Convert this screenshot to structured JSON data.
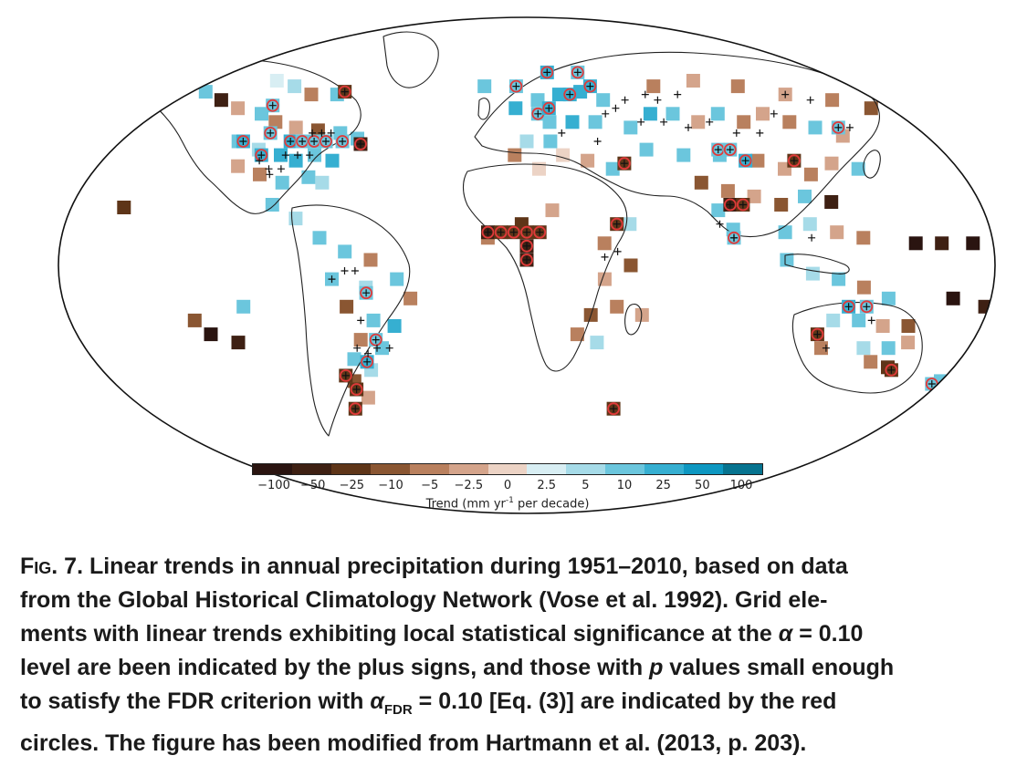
{
  "colorbar": {
    "ticks": [
      "−100",
      "−50",
      "−25",
      "−10",
      "−5",
      "−2.5",
      "0",
      "2.5",
      "5",
      "10",
      "25",
      "50",
      "100"
    ],
    "label_pre": "Trend (mm yr",
    "label_sup": "-1",
    "label_post": " per decade)",
    "colors": [
      "#2a1410",
      "#3e2013",
      "#5e3518",
      "#8a5632",
      "#b9805e",
      "#d4a48b",
      "#ecd3c5",
      "#d8eef3",
      "#a6dbe8",
      "#6bc6dd",
      "#36afd1",
      "#0d97c1",
      "#06738f"
    ]
  },
  "markers": {
    "significant": "#111111",
    "fdr_circle": "#e03a3a"
  },
  "map": {
    "cells": [
      {
        "lon": -120,
        "lat": 67,
        "c": 7
      },
      {
        "lon": -110,
        "lat": 65,
        "c": 8
      },
      {
        "lon": -100,
        "lat": 62,
        "c": 4
      },
      {
        "lon": -88,
        "lat": 62,
        "c": 9
      },
      {
        "lon": -150,
        "lat": 63,
        "c": 9
      },
      {
        "lon": -140,
        "lat": 60,
        "c": 1
      },
      {
        "lon": -130,
        "lat": 57,
        "c": 5
      },
      {
        "lon": -118,
        "lat": 55,
        "c": 9
      },
      {
        "lon": -110,
        "lat": 52,
        "c": 4
      },
      {
        "lon": -100,
        "lat": 50,
        "c": 5
      },
      {
        "lon": -90,
        "lat": 49,
        "c": 3
      },
      {
        "lon": -80,
        "lat": 48,
        "c": 9
      },
      {
        "lon": -72,
        "lat": 46,
        "c": 9
      },
      {
        "lon": -122,
        "lat": 45,
        "c": 9
      },
      {
        "lon": -112,
        "lat": 42,
        "c": 8
      },
      {
        "lon": -102,
        "lat": 40,
        "c": 10
      },
      {
        "lon": -95,
        "lat": 38,
        "c": 10
      },
      {
        "lon": -88,
        "lat": 40,
        "c": 9
      },
      {
        "lon": -80,
        "lat": 38,
        "c": 10
      },
      {
        "lon": -118,
        "lat": 36,
        "c": 5
      },
      {
        "lon": -108,
        "lat": 33,
        "c": 4
      },
      {
        "lon": -98,
        "lat": 30,
        "c": 9
      },
      {
        "lon": -88,
        "lat": 32,
        "c": 9
      },
      {
        "lon": -82,
        "lat": 30,
        "c": 8
      },
      {
        "lon": -158,
        "lat": 21,
        "c": 2
      },
      {
        "lon": -100,
        "lat": 22,
        "c": 9
      },
      {
        "lon": -90,
        "lat": 17,
        "c": 8
      },
      {
        "lon": -80,
        "lat": 10,
        "c": 9
      },
      {
        "lon": -70,
        "lat": 5,
        "c": 9
      },
      {
        "lon": -60,
        "lat": 2,
        "c": 4
      },
      {
        "lon": -75,
        "lat": -5,
        "c": 9
      },
      {
        "lon": -62,
        "lat": -8,
        "c": 8
      },
      {
        "lon": -50,
        "lat": -5,
        "c": 9
      },
      {
        "lon": -45,
        "lat": -12,
        "c": 4
      },
      {
        "lon": -70,
        "lat": -15,
        "c": 3
      },
      {
        "lon": -60,
        "lat": -20,
        "c": 9
      },
      {
        "lon": -52,
        "lat": -22,
        "c": 10
      },
      {
        "lon": -66,
        "lat": -27,
        "c": 4
      },
      {
        "lon": -58,
        "lat": -30,
        "c": 9
      },
      {
        "lon": -70,
        "lat": -34,
        "c": 9
      },
      {
        "lon": -64,
        "lat": -38,
        "c": 8
      },
      {
        "lon": -72,
        "lat": -42,
        "c": 3
      },
      {
        "lon": -68,
        "lat": -48,
        "c": 5
      },
      {
        "lon": -110,
        "lat": -15,
        "c": 9
      },
      {
        "lon": -130,
        "lat": -20,
        "c": 3
      },
      {
        "lon": -125,
        "lat": -25,
        "c": 0
      },
      {
        "lon": -115,
        "lat": -28,
        "c": 1
      },
      {
        "lon": -20,
        "lat": 65,
        "c": 9
      },
      {
        "lon": -5,
        "lat": 57,
        "c": 10
      },
      {
        "lon": 5,
        "lat": 60,
        "c": 9
      },
      {
        "lon": 15,
        "lat": 62,
        "c": 10
      },
      {
        "lon": 25,
        "lat": 63,
        "c": 10
      },
      {
        "lon": 35,
        "lat": 60,
        "c": 9
      },
      {
        "lon": 10,
        "lat": 52,
        "c": 9
      },
      {
        "lon": 20,
        "lat": 52,
        "c": 10
      },
      {
        "lon": 30,
        "lat": 52,
        "c": 9
      },
      {
        "lon": 0,
        "lat": 45,
        "c": 8
      },
      {
        "lon": 10,
        "lat": 45,
        "c": 9
      },
      {
        "lon": -5,
        "lat": 40,
        "c": 4
      },
      {
        "lon": 15,
        "lat": 40,
        "c": 6
      },
      {
        "lon": 25,
        "lat": 38,
        "c": 5
      },
      {
        "lon": 35,
        "lat": 35,
        "c": 9
      },
      {
        "lon": 5,
        "lat": 35,
        "c": 6
      },
      {
        "lon": 45,
        "lat": 50,
        "c": 9
      },
      {
        "lon": 55,
        "lat": 55,
        "c": 10
      },
      {
        "lon": 65,
        "lat": 55,
        "c": 9
      },
      {
        "lon": 75,
        "lat": 52,
        "c": 5
      },
      {
        "lon": 85,
        "lat": 55,
        "c": 9
      },
      {
        "lon": 95,
        "lat": 52,
        "c": 4
      },
      {
        "lon": 105,
        "lat": 55,
        "c": 5
      },
      {
        "lon": 115,
        "lat": 52,
        "c": 4
      },
      {
        "lon": 125,
        "lat": 50,
        "c": 9
      },
      {
        "lon": 135,
        "lat": 47,
        "c": 5
      },
      {
        "lon": 60,
        "lat": 65,
        "c": 4
      },
      {
        "lon": 80,
        "lat": 67,
        "c": 5
      },
      {
        "lon": 100,
        "lat": 65,
        "c": 4
      },
      {
        "lon": 120,
        "lat": 62,
        "c": 5
      },
      {
        "lon": 140,
        "lat": 60,
        "c": 4
      },
      {
        "lon": 155,
        "lat": 57,
        "c": 3
      },
      {
        "lon": 50,
        "lat": 42,
        "c": 9
      },
      {
        "lon": 65,
        "lat": 40,
        "c": 9
      },
      {
        "lon": 80,
        "lat": 40,
        "c": 9
      },
      {
        "lon": 95,
        "lat": 38,
        "c": 4
      },
      {
        "lon": 105,
        "lat": 35,
        "c": 5
      },
      {
        "lon": 115,
        "lat": 33,
        "c": 4
      },
      {
        "lon": 125,
        "lat": 37,
        "c": 5
      },
      {
        "lon": 135,
        "lat": 35,
        "c": 9
      },
      {
        "lon": 70,
        "lat": 30,
        "c": 3
      },
      {
        "lon": 80,
        "lat": 27,
        "c": 4
      },
      {
        "lon": 90,
        "lat": 25,
        "c": 5
      },
      {
        "lon": 100,
        "lat": 22,
        "c": 3
      },
      {
        "lon": 110,
        "lat": 25,
        "c": 9
      },
      {
        "lon": 120,
        "lat": 23,
        "c": 1
      },
      {
        "lon": 75,
        "lat": 20,
        "c": 9
      },
      {
        "lon": 80,
        "lat": 13,
        "c": 9
      },
      {
        "lon": 100,
        "lat": 12,
        "c": 9
      },
      {
        "lon": 110,
        "lat": 15,
        "c": 8
      },
      {
        "lon": 120,
        "lat": 12,
        "c": 5
      },
      {
        "lon": 130,
        "lat": 10,
        "c": 4
      },
      {
        "lon": 150,
        "lat": 8,
        "c": 0
      },
      {
        "lon": 160,
        "lat": 8,
        "c": 1
      },
      {
        "lon": 172,
        "lat": 8,
        "c": 0
      },
      {
        "lon": 100,
        "lat": 2,
        "c": 9
      },
      {
        "lon": 110,
        "lat": -3,
        "c": 8
      },
      {
        "lon": 120,
        "lat": -5,
        "c": 9
      },
      {
        "lon": 130,
        "lat": -8,
        "c": 4
      },
      {
        "lon": 140,
        "lat": -12,
        "c": 9
      },
      {
        "lon": 120,
        "lat": -20,
        "c": 8
      },
      {
        "lon": 130,
        "lat": -20,
        "c": 9
      },
      {
        "lon": 140,
        "lat": -22,
        "c": 5
      },
      {
        "lon": 150,
        "lat": -22,
        "c": 3
      },
      {
        "lon": 118,
        "lat": -30,
        "c": 4
      },
      {
        "lon": 135,
        "lat": -30,
        "c": 8
      },
      {
        "lon": 145,
        "lat": -30,
        "c": 9
      },
      {
        "lon": 152,
        "lat": -28,
        "c": 5
      },
      {
        "lon": 140,
        "lat": -35,
        "c": 4
      },
      {
        "lon": 148,
        "lat": -37,
        "c": 2
      },
      {
        "lon": 165,
        "lat": -12,
        "c": 0
      },
      {
        "lon": 178,
        "lat": -15,
        "c": 1
      },
      {
        "lon": 173,
        "lat": -42,
        "c": 9
      },
      {
        "lon": -2,
        "lat": 15,
        "c": 2
      },
      {
        "lon": 10,
        "lat": 20,
        "c": 5
      },
      {
        "lon": 40,
        "lat": 15,
        "c": 8
      },
      {
        "lon": 30,
        "lat": 8,
        "c": 4
      },
      {
        "lon": 40,
        "lat": 0,
        "c": 3
      },
      {
        "lon": 30,
        "lat": -5,
        "c": 5
      },
      {
        "lon": 35,
        "lat": -15,
        "c": 4
      },
      {
        "lon": 25,
        "lat": -18,
        "c": 3
      },
      {
        "lon": 45,
        "lat": -18,
        "c": 5
      },
      {
        "lon": 20,
        "lat": -25,
        "c": 4
      },
      {
        "lon": 28,
        "lat": -28,
        "c": 8
      },
      {
        "lon": -15,
        "lat": 10,
        "c": 4
      }
    ],
    "significant": [
      {
        "lon": -100,
        "lat": 40
      },
      {
        "lon": -95,
        "lat": 40
      },
      {
        "lon": -90,
        "lat": 40
      },
      {
        "lon": -110,
        "lat": 38
      },
      {
        "lon": -105,
        "lat": 35
      },
      {
        "lon": -100,
        "lat": 35
      },
      {
        "lon": -92,
        "lat": 48
      },
      {
        "lon": -88,
        "lat": 48
      },
      {
        "lon": -84,
        "lat": 48
      },
      {
        "lon": -104,
        "lat": 33
      },
      {
        "lon": -60,
        "lat": -30
      },
      {
        "lon": -55,
        "lat": -30
      },
      {
        "lon": -64,
        "lat": -32
      },
      {
        "lon": -68,
        "lat": -30
      },
      {
        "lon": -65,
        "lat": -20
      },
      {
        "lon": -75,
        "lat": -5
      },
      {
        "lon": -70,
        "lat": -2
      },
      {
        "lon": -66,
        "lat": -2
      },
      {
        "lon": 35,
        "lat": 55
      },
      {
        "lon": 40,
        "lat": 57
      },
      {
        "lon": 50,
        "lat": 52
      },
      {
        "lon": 60,
        "lat": 52
      },
      {
        "lon": 70,
        "lat": 50
      },
      {
        "lon": 80,
        "lat": 52
      },
      {
        "lon": 90,
        "lat": 48
      },
      {
        "lon": 100,
        "lat": 48
      },
      {
        "lon": 110,
        "lat": 55
      },
      {
        "lon": 120,
        "lat": 62
      },
      {
        "lon": 130,
        "lat": 60
      },
      {
        "lon": 55,
        "lat": 62
      },
      {
        "lon": 60,
        "lat": 60
      },
      {
        "lon": 70,
        "lat": 62
      },
      {
        "lon": 15,
        "lat": 48
      },
      {
        "lon": 30,
        "lat": 45
      },
      {
        "lon": 45,
        "lat": 60
      },
      {
        "lon": 120,
        "lat": -30
      },
      {
        "lon": 135,
        "lat": -20
      },
      {
        "lon": 75,
        "lat": 15
      },
      {
        "lon": 80,
        "lat": 10
      },
      {
        "lon": 110,
        "lat": 10
      },
      {
        "lon": 35,
        "lat": 5
      },
      {
        "lon": 30,
        "lat": 3
      },
      {
        "lon": 140,
        "lat": 50
      }
    ],
    "fdr": [
      {
        "lon": -120,
        "lat": 45,
        "c": 10
      },
      {
        "lon": -110,
        "lat": 48,
        "c": 9
      },
      {
        "lon": -100,
        "lat": 45,
        "c": 10
      },
      {
        "lon": -95,
        "lat": 45,
        "c": 9
      },
      {
        "lon": -90,
        "lat": 45,
        "c": 9
      },
      {
        "lon": -85,
        "lat": 45,
        "c": 9
      },
      {
        "lon": -78,
        "lat": 45,
        "c": 9
      },
      {
        "lon": -70,
        "lat": 44,
        "c": 1
      },
      {
        "lon": -110,
        "lat": 40,
        "c": 10
      },
      {
        "lon": -115,
        "lat": 58,
        "c": 9
      },
      {
        "lon": -85,
        "lat": 63,
        "c": 2
      },
      {
        "lon": -5,
        "lat": 65,
        "c": 9
      },
      {
        "lon": 10,
        "lat": 70,
        "c": 10
      },
      {
        "lon": 25,
        "lat": 70,
        "c": 9
      },
      {
        "lon": 20,
        "lat": 62,
        "c": 10
      },
      {
        "lon": 5,
        "lat": 55,
        "c": 9
      },
      {
        "lon": 10,
        "lat": 57,
        "c": 10
      },
      {
        "lon": 30,
        "lat": 65,
        "c": 10
      },
      {
        "lon": 40,
        "lat": 37,
        "c": 2
      },
      {
        "lon": 80,
        "lat": 42,
        "c": 9
      },
      {
        "lon": 85,
        "lat": 42,
        "c": 9
      },
      {
        "lon": 90,
        "lat": 38,
        "c": 10
      },
      {
        "lon": 110,
        "lat": 38,
        "c": 2
      },
      {
        "lon": 135,
        "lat": 50,
        "c": 9
      },
      {
        "lon": 80,
        "lat": 22,
        "c": 1
      },
      {
        "lon": 85,
        "lat": 22,
        "c": 2
      },
      {
        "lon": 80,
        "lat": 10,
        "c": 9
      },
      {
        "lon": -15,
        "lat": 12,
        "c": 1
      },
      {
        "lon": -10,
        "lat": 12,
        "c": 2
      },
      {
        "lon": -5,
        "lat": 12,
        "c": 2
      },
      {
        "lon": 0,
        "lat": 12,
        "c": 2
      },
      {
        "lon": 5,
        "lat": 12,
        "c": 2
      },
      {
        "lon": 0,
        "lat": 7,
        "c": 1
      },
      {
        "lon": 0,
        "lat": 2,
        "c": 1
      },
      {
        "lon": 35,
        "lat": 15,
        "c": 2
      },
      {
        "lon": -65,
        "lat": -35,
        "c": 10
      },
      {
        "lon": -60,
        "lat": -27,
        "c": 9
      },
      {
        "lon": -75,
        "lat": -40,
        "c": 2
      },
      {
        "lon": -72,
        "lat": -45,
        "c": 2
      },
      {
        "lon": -62,
        "lat": -10,
        "c": 9
      },
      {
        "lon": -75,
        "lat": -52,
        "c": 2
      },
      {
        "lon": 125,
        "lat": -15,
        "c": 10
      },
      {
        "lon": 132,
        "lat": -15,
        "c": 9
      },
      {
        "lon": 115,
        "lat": -25,
        "c": 2
      },
      {
        "lon": 150,
        "lat": -38,
        "c": 2
      },
      {
        "lon": 170,
        "lat": -43,
        "c": 9
      },
      {
        "lon": 38,
        "lat": -52,
        "c": 2
      }
    ]
  },
  "caption": {
    "fig_label": "Fig. 7.",
    "line1": "Linear trends in annual precipitation during 1951–2010, based on data",
    "line2": "from the Global Historical Climatology Network (Vose et al. 1992). Grid ele-",
    "line3_a": "ments with linear trends exhibiting local statistical significance at the ",
    "alpha_symbol": "α",
    "line3_b": " = 0.10",
    "line4_a": "level are been indicated by the plus signs, and those with ",
    "p_symbol": "p",
    "line4_b": " values small enough",
    "line5_a": "to satisfy the FDR criterion with ",
    "alpha_fdr_sub": "FDR",
    "line5_b": " = 0.10 [Eq. (3)] are indicated by the red",
    "line6": "circles. The figure has been modified from Hartmann et al. (2013, p. 203)."
  }
}
